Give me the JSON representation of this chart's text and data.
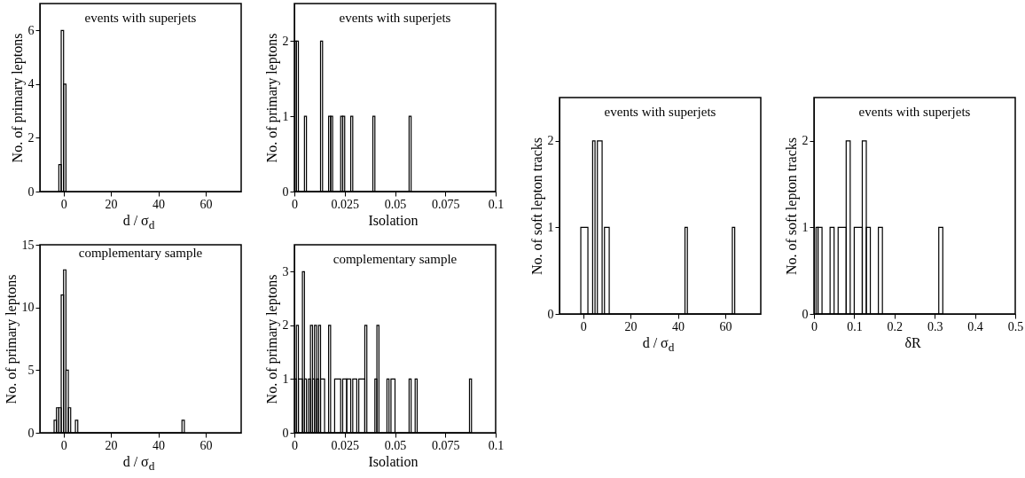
{
  "chart_data": [
    {
      "type": "histogram",
      "title": "events with superjets",
      "xlabel": "d / σ$_{d}$",
      "ylabel": "No. of primary leptons",
      "color": "#000000",
      "bins": [
        -2,
        -1,
        0,
        1
      ],
      "values": [
        1,
        6,
        4
      ],
      "xlim": [
        -10,
        75
      ],
      "xticks": [
        0,
        20,
        40,
        60
      ],
      "ylim": [
        0,
        7
      ],
      "yticks": [
        0,
        2,
        4,
        6
      ]
    },
    {
      "type": "histogram",
      "title": "events with superjets",
      "xlabel": "Isolation",
      "ylabel": "No. of primary leptons",
      "color": "#000000",
      "bins": [
        0,
        0.001,
        0.002,
        0.005,
        0.006,
        0.013,
        0.014,
        0.017,
        0.018,
        0.019,
        0.023,
        0.024,
        0.025,
        0.028,
        0.029,
        0.039,
        0.04,
        0.057,
        0.058
      ],
      "values": [
        2,
        2,
        0,
        1,
        0,
        2,
        0,
        1,
        1,
        0,
        1,
        1,
        0,
        1,
        0,
        1,
        0,
        1
      ],
      "xlim": [
        0,
        0.1
      ],
      "xticks": [
        0,
        0.025,
        0.05,
        0.075,
        0.1
      ],
      "ylim": [
        0,
        2.5
      ],
      "yticks": [
        0,
        1,
        2
      ]
    },
    {
      "type": "histogram",
      "title": "complementary sample",
      "xlabel": "d / σ$_{d}$",
      "ylabel": "No. of primary leptons",
      "color": "#000000",
      "bins": [
        -4,
        -3,
        -2,
        -1,
        0,
        1,
        2,
        3,
        5,
        6,
        50,
        51
      ],
      "values": [
        1,
        2,
        2,
        11,
        13,
        5,
        2,
        0,
        1,
        0,
        1
      ],
      "xlim": [
        -10,
        75
      ],
      "xticks": [
        0,
        20,
        40,
        60
      ],
      "ylim": [
        0,
        15
      ],
      "yticks": [
        0,
        5,
        10,
        15
      ]
    },
    {
      "type": "histogram",
      "title": "complementary sample",
      "xlabel": "Isolation",
      "ylabel": "No. of primary leptons",
      "color": "#000000",
      "bins": [
        0,
        0.001,
        0.002,
        0.004,
        0.005,
        0.006,
        0.007,
        0.008,
        0.009,
        0.01,
        0.011,
        0.012,
        0.013,
        0.015,
        0.017,
        0.018,
        0.02,
        0.023,
        0.024,
        0.026,
        0.028,
        0.029,
        0.031,
        0.032,
        0.035,
        0.036,
        0.04,
        0.041,
        0.042,
        0.046,
        0.047,
        0.048,
        0.05,
        0.057,
        0.058,
        0.06,
        0.061,
        0.087,
        0.088
      ],
      "values": [
        1,
        2,
        1,
        3,
        1,
        0,
        1,
        2,
        1,
        2,
        1,
        2,
        1,
        0,
        2,
        0,
        1,
        0,
        1,
        1,
        0,
        1,
        0,
        1,
        2,
        0,
        1,
        2,
        0,
        1,
        0,
        1,
        0,
        1,
        0,
        1,
        0,
        1
      ],
      "xlim": [
        0,
        0.1
      ],
      "xticks": [
        0,
        0.025,
        0.05,
        0.075,
        0.1
      ],
      "ylim": [
        0,
        3.5
      ],
      "yticks": [
        0,
        1,
        2,
        3
      ]
    },
    {
      "type": "histogram",
      "title": "events with superjets",
      "xlabel": "d / σ$_{d}$",
      "ylabel": "No. of soft lepton tracks",
      "color": "#000000",
      "bins": [
        -1,
        2,
        4,
        5,
        6,
        8,
        9,
        11,
        43,
        44,
        63,
        64
      ],
      "values": [
        1,
        0,
        2,
        0,
        2,
        0,
        1,
        0,
        1,
        0,
        1
      ],
      "xlim": [
        -10,
        75
      ],
      "xticks": [
        0,
        20,
        40,
        60
      ],
      "ylim": [
        0,
        2.5
      ],
      "yticks": [
        0,
        1,
        2
      ]
    },
    {
      "type": "histogram",
      "title": "events with superjets",
      "xlabel": "δR",
      "ylabel": "No. of soft lepton tracks",
      "color": "#000000",
      "bins": [
        0.005,
        0.01,
        0.02,
        0.04,
        0.05,
        0.06,
        0.08,
        0.09,
        0.1,
        0.12,
        0.13,
        0.14,
        0.16,
        0.17,
        0.31,
        0.32
      ],
      "values": [
        1,
        1,
        0,
        1,
        0,
        1,
        2,
        0,
        1,
        2,
        1,
        0,
        1,
        0,
        1
      ],
      "xlim": [
        0,
        0.5
      ],
      "xticks": [
        0,
        0.1,
        0.2,
        0.3,
        0.4,
        0.5
      ],
      "ylim": [
        0,
        2.5
      ],
      "yticks": [
        0,
        1,
        2
      ]
    }
  ]
}
